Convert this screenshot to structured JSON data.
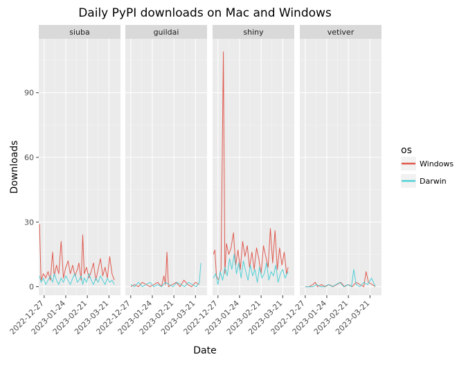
{
  "chart_data": {
    "type": "line",
    "title": "Daily PyPI downloads on Mac and Windows",
    "xlabel": "Date",
    "ylabel": "Downloads",
    "ylim": [
      -4,
      115
    ],
    "y_ticks": [
      0,
      30,
      60,
      90
    ],
    "x_range": [
      "2022-12-20",
      "2023-04-05"
    ],
    "x_ticks": [
      "2022-12-27",
      "2023-01-24",
      "2023-02-21",
      "2023-03-21"
    ],
    "grid": true,
    "legend": {
      "title": "os",
      "placement": "right",
      "entries": [
        {
          "name": "Windows",
          "color": "#e0584d"
        },
        {
          "name": "Darwin",
          "color": "#4fcfd6"
        }
      ]
    },
    "panels": [
      {
        "label": "siuba",
        "series": [
          {
            "name": "Windows",
            "x": [
              "2022-12-21",
              "2022-12-23",
              "2022-12-26",
              "2022-12-29",
              "2023-01-01",
              "2023-01-04",
              "2023-01-07",
              "2023-01-09",
              "2023-01-12",
              "2023-01-15",
              "2023-01-18",
              "2023-01-21",
              "2023-01-24",
              "2023-01-27",
              "2023-01-30",
              "2023-02-02",
              "2023-02-05",
              "2023-02-08",
              "2023-02-10",
              "2023-02-13",
              "2023-02-15",
              "2023-02-17",
              "2023-02-20",
              "2023-02-23",
              "2023-02-26",
              "2023-03-01",
              "2023-03-04",
              "2023-03-07",
              "2023-03-10",
              "2023-03-13",
              "2023-03-16",
              "2023-03-19",
              "2023-03-22",
              "2023-03-25",
              "2023-03-28"
            ],
            "y": [
              29,
              3,
              6,
              4,
              7,
              3,
              16,
              5,
              10,
              6,
              21,
              4,
              9,
              12,
              6,
              10,
              5,
              8,
              11,
              3,
              24,
              6,
              9,
              4,
              7,
              11,
              3,
              8,
              13,
              5,
              9,
              4,
              14,
              6,
              3
            ]
          },
          {
            "name": "Darwin",
            "x": [
              "2022-12-21",
              "2022-12-23",
              "2022-12-26",
              "2022-12-29",
              "2023-01-01",
              "2023-01-04",
              "2023-01-07",
              "2023-01-09",
              "2023-01-12",
              "2023-01-15",
              "2023-01-18",
              "2023-01-21",
              "2023-01-24",
              "2023-01-27",
              "2023-01-30",
              "2023-02-02",
              "2023-02-05",
              "2023-02-08",
              "2023-02-10",
              "2023-02-13",
              "2023-02-15",
              "2023-02-17",
              "2023-02-20",
              "2023-02-23",
              "2023-02-26",
              "2023-03-01",
              "2023-03-04",
              "2023-03-07",
              "2023-03-10",
              "2023-03-13",
              "2023-03-16",
              "2023-03-19",
              "2023-03-22",
              "2023-03-25",
              "2023-03-28"
            ],
            "y": [
              5,
              2,
              4,
              1,
              3,
              5,
              2,
              6,
              3,
              1,
              4,
              2,
              5,
              3,
              1,
              4,
              6,
              2,
              3,
              5,
              1,
              4,
              2,
              6,
              3,
              1,
              4,
              2,
              5,
              3,
              1,
              4,
              2,
              3,
              1
            ]
          }
        ]
      },
      {
        "label": "guildai",
        "series": [
          {
            "name": "Windows",
            "x": [
              "2022-12-27",
              "2023-01-01",
              "2023-01-06",
              "2023-01-11",
              "2023-01-16",
              "2023-01-21",
              "2023-01-26",
              "2023-01-31",
              "2023-02-05",
              "2023-02-08",
              "2023-02-10",
              "2023-02-12",
              "2023-02-14",
              "2023-02-19",
              "2023-02-24",
              "2023-03-01",
              "2023-03-06",
              "2023-03-11",
              "2023-03-16",
              "2023-03-21",
              "2023-03-26"
            ],
            "y": [
              0,
              1,
              0,
              2,
              1,
              0,
              1,
              2,
              0,
              5,
              1,
              16,
              0,
              1,
              2,
              0,
              3,
              1,
              0,
              2,
              1
            ]
          },
          {
            "name": "Darwin",
            "x": [
              "2022-12-27",
              "2023-01-01",
              "2023-01-06",
              "2023-01-11",
              "2023-01-16",
              "2023-01-21",
              "2023-01-26",
              "2023-01-31",
              "2023-02-05",
              "2023-02-10",
              "2023-02-15",
              "2023-02-20",
              "2023-02-25",
              "2023-03-02",
              "2023-03-07",
              "2023-03-12",
              "2023-03-17",
              "2023-03-22",
              "2023-03-26",
              "2023-03-28"
            ],
            "y": [
              1,
              0,
              2,
              0,
              1,
              2,
              0,
              1,
              0,
              2,
              1,
              0,
              2,
              1,
              0,
              2,
              1,
              0,
              2,
              11
            ]
          }
        ]
      },
      {
        "label": "shiny",
        "series": [
          {
            "name": "Windows",
            "x": [
              "2022-12-21",
              "2022-12-23",
              "2022-12-25",
              "2022-12-28",
              "2022-12-31",
              "2023-01-03",
              "2023-01-05",
              "2023-01-07",
              "2023-01-10",
              "2023-01-13",
              "2023-01-16",
              "2023-01-19",
              "2023-01-22",
              "2023-01-25",
              "2023-01-28",
              "2023-01-31",
              "2023-02-03",
              "2023-02-06",
              "2023-02-09",
              "2023-02-12",
              "2023-02-15",
              "2023-02-18",
              "2023-02-21",
              "2023-02-24",
              "2023-02-27",
              "2023-03-02",
              "2023-03-05",
              "2023-03-08",
              "2023-03-11",
              "2023-03-14",
              "2023-03-17",
              "2023-03-20",
              "2023-03-23",
              "2023-03-26",
              "2023-03-28"
            ],
            "y": [
              15,
              17,
              5,
              3,
              8,
              109,
              6,
              20,
              15,
              18,
              25,
              10,
              17,
              8,
              21,
              14,
              19,
              9,
              16,
              8,
              18,
              13,
              6,
              19,
              14,
              9,
              27,
              11,
              26,
              8,
              18,
              10,
              16,
              6,
              9
            ]
          },
          {
            "name": "Darwin",
            "x": [
              "2022-12-21",
              "2022-12-24",
              "2022-12-27",
              "2022-12-30",
              "2023-01-02",
              "2023-01-05",
              "2023-01-08",
              "2023-01-11",
              "2023-01-14",
              "2023-01-17",
              "2023-01-20",
              "2023-01-23",
              "2023-01-26",
              "2023-01-29",
              "2023-02-01",
              "2023-02-04",
              "2023-02-07",
              "2023-02-10",
              "2023-02-13",
              "2023-02-16",
              "2023-02-19",
              "2023-02-22",
              "2023-02-25",
              "2023-02-28",
              "2023-03-03",
              "2023-03-06",
              "2023-03-09",
              "2023-03-12",
              "2023-03-15",
              "2023-03-18",
              "2023-03-21",
              "2023-03-24",
              "2023-03-28"
            ],
            "y": [
              4,
              6,
              1,
              7,
              3,
              9,
              5,
              13,
              8,
              15,
              6,
              11,
              4,
              12,
              7,
              3,
              10,
              5,
              8,
              2,
              9,
              4,
              6,
              11,
              3,
              7,
              5,
              10,
              2,
              6,
              8,
              4,
              7
            ]
          }
        ]
      },
      {
        "label": "vetiver",
        "series": [
          {
            "name": "Windows",
            "x": [
              "2022-12-27",
              "2023-01-01",
              "2023-01-06",
              "2023-01-09",
              "2023-01-12",
              "2023-01-17",
              "2023-01-22",
              "2023-01-27",
              "2023-02-01",
              "2023-02-06",
              "2023-02-11",
              "2023-02-16",
              "2023-02-21",
              "2023-02-26",
              "2023-03-03",
              "2023-03-08",
              "2023-03-13",
              "2023-03-16",
              "2023-03-19",
              "2023-03-24",
              "2023-03-28"
            ],
            "y": [
              0,
              0,
              1,
              2,
              0,
              1,
              0,
              1,
              0,
              1,
              2,
              0,
              1,
              0,
              2,
              1,
              0,
              7,
              2,
              1,
              0
            ]
          },
          {
            "name": "Darwin",
            "x": [
              "2022-12-27",
              "2023-01-01",
              "2023-01-06",
              "2023-01-11",
              "2023-01-16",
              "2023-01-21",
              "2023-01-26",
              "2023-01-31",
              "2023-02-05",
              "2023-02-10",
              "2023-02-15",
              "2023-02-20",
              "2023-02-25",
              "2023-02-28",
              "2023-03-03",
              "2023-03-08",
              "2023-03-13",
              "2023-03-18",
              "2023-03-23",
              "2023-03-28"
            ],
            "y": [
              0,
              0,
              0,
              1,
              0,
              0,
              1,
              0,
              1,
              2,
              0,
              1,
              0,
              8,
              1,
              0,
              2,
              1,
              4,
              0
            ]
          }
        ]
      }
    ]
  }
}
